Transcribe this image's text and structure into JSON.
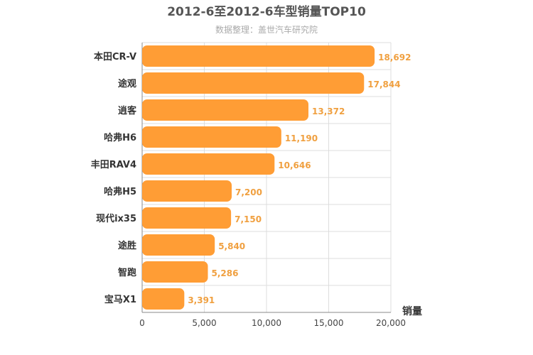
{
  "chart_data": {
    "type": "bar",
    "orientation": "horizontal",
    "title": "2012-6至2012-6车型销量TOP10",
    "subtitle": "数据整理：盖世汽车研究院",
    "xlabel": "销量",
    "ylabel": "",
    "categories": [
      "本田CR-V",
      "途观",
      "逍客",
      "哈弗H6",
      "丰田RAV4",
      "哈弗H5",
      "现代ix35",
      "途胜",
      "智跑",
      "宝马X1"
    ],
    "values": [
      18692,
      17844,
      13372,
      11190,
      10646,
      7200,
      7150,
      5840,
      5286,
      3391
    ],
    "value_labels": [
      "18,692",
      "17,844",
      "13,372",
      "11,190",
      "10,646",
      "7,200",
      "7,150",
      "5,840",
      "5,286",
      "3,391"
    ],
    "xlim": [
      0,
      20000
    ],
    "xticks": [
      0,
      5000,
      10000,
      15000,
      20000
    ],
    "xtick_labels": [
      "0",
      "5,000",
      "10,000",
      "15,000",
      "20,000"
    ],
    "grid": true,
    "bar_color": "#ff9d35",
    "label_color": "#f0a040"
  }
}
